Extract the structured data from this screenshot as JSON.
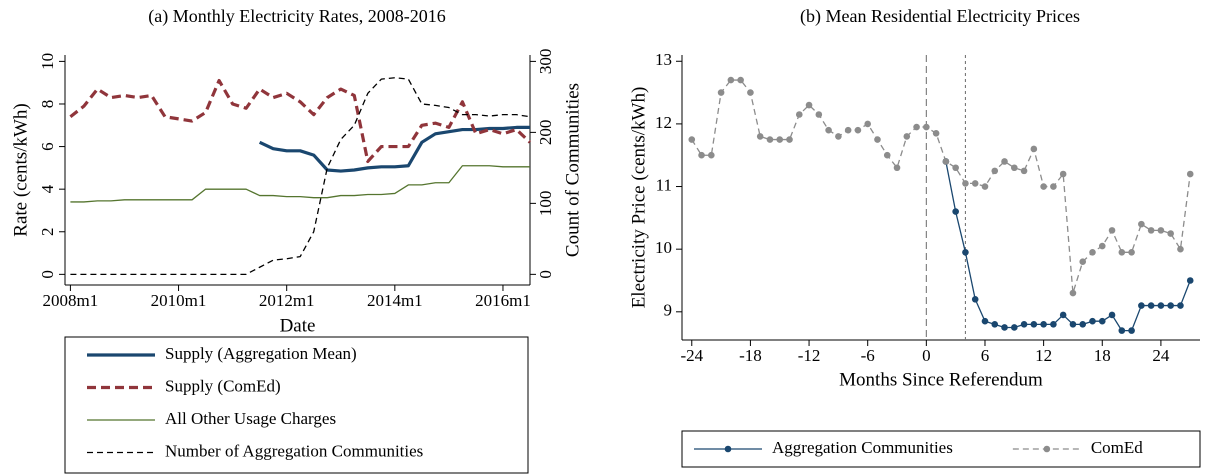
{
  "chart_data": [
    {
      "type": "line",
      "title": "(a) Monthly Electricity Rates, 2008-2016",
      "xlabel": "Date",
      "ylabel": "Rate (cents/kWh)",
      "y2label": "Count of Communities",
      "x": [
        2008,
        2008.25,
        2008.5,
        2008.75,
        2009,
        2009.25,
        2009.5,
        2009.75,
        2010,
        2010.25,
        2010.5,
        2010.75,
        2011,
        2011.25,
        2011.5,
        2011.75,
        2012,
        2012.25,
        2012.5,
        2012.75,
        2013,
        2013.25,
        2013.5,
        2013.75,
        2014,
        2014.25,
        2014.5,
        2014.75,
        2015,
        2015.25,
        2015.5,
        2015.75,
        2016,
        2016.25,
        2016.5
      ],
      "xlim": [
        2007.9,
        2016.5
      ],
      "xticks": [
        {
          "value": 2008,
          "label": "2008m1"
        },
        {
          "value": 2010,
          "label": "2010m1"
        },
        {
          "value": 2012,
          "label": "2012m1"
        },
        {
          "value": 2014,
          "label": "2014m1"
        },
        {
          "value": 2016,
          "label": "2016m1"
        }
      ],
      "ylim": [
        -0.5,
        10.3
      ],
      "yticks": [
        0,
        2,
        4,
        6,
        8,
        10
      ],
      "y2lim": [
        -15,
        309
      ],
      "y2ticks": [
        0,
        100,
        200,
        300
      ],
      "legend": "below",
      "series": [
        {
          "name": "Supply (Aggregation Mean)",
          "color": "#1a476f",
          "line_style": "solid-thick",
          "values": [
            null,
            null,
            null,
            null,
            null,
            null,
            null,
            null,
            null,
            null,
            null,
            null,
            null,
            null,
            6.2,
            5.9,
            5.8,
            5.8,
            5.6,
            4.9,
            4.85,
            4.9,
            5.0,
            5.05,
            5.05,
            5.1,
            6.2,
            6.6,
            6.7,
            6.8,
            6.8,
            6.85,
            6.85,
            6.9,
            6.9
          ]
        },
        {
          "name": "Supply (ComEd)",
          "color": "#90353b",
          "line_style": "dash-thick",
          "values": [
            7.4,
            7.9,
            8.7,
            8.3,
            8.4,
            8.3,
            8.4,
            7.4,
            7.3,
            7.2,
            7.6,
            9.1,
            8.0,
            7.8,
            8.7,
            8.3,
            8.5,
            8.1,
            7.5,
            8.3,
            8.7,
            8.4,
            5.3,
            6.0,
            6.0,
            6.0,
            7.0,
            7.1,
            6.9,
            8.1,
            6.6,
            6.8,
            6.6,
            6.8,
            6.2
          ]
        },
        {
          "name": "All Other Usage Charges",
          "color": "#55752f",
          "line_style": "solid",
          "values": [
            3.4,
            3.4,
            3.45,
            3.45,
            3.5,
            3.5,
            3.5,
            3.5,
            3.5,
            3.5,
            4.0,
            4.0,
            4.0,
            4.0,
            3.7,
            3.7,
            3.65,
            3.65,
            3.6,
            3.6,
            3.7,
            3.7,
            3.75,
            3.75,
            3.8,
            4.2,
            4.2,
            4.3,
            4.3,
            5.1,
            5.1,
            5.1,
            5.05,
            5.05,
            5.05
          ]
        },
        {
          "name": "Number of Aggregation Communities",
          "color": "#000000",
          "line_style": "dash",
          "axis": "y2",
          "values": [
            0,
            0,
            0,
            0,
            0,
            0,
            0,
            0,
            0,
            0,
            0,
            0,
            0,
            0,
            10,
            20,
            22,
            25,
            60,
            150,
            190,
            210,
            255,
            275,
            277,
            275,
            240,
            238,
            235,
            225,
            225,
            223,
            225,
            225,
            222
          ]
        }
      ]
    },
    {
      "type": "line",
      "title": "(b) Mean Residential Electricity Prices",
      "xlabel": "Months Since Referendum",
      "ylabel": "Electricity Price (cents/kWh)",
      "x": [
        -24,
        -23,
        -22,
        -21,
        -20,
        -19,
        -18,
        -17,
        -16,
        -15,
        -14,
        -13,
        -12,
        -11,
        -10,
        -9,
        -8,
        -7,
        -6,
        -5,
        -4,
        -3,
        -2,
        -1,
        0,
        1,
        2,
        3,
        4,
        5,
        6,
        7,
        8,
        9,
        10,
        11,
        12,
        13,
        14,
        15,
        16,
        17,
        18,
        19,
        20,
        21,
        22,
        23,
        24,
        25,
        26,
        27
      ],
      "xlim": [
        -25,
        28
      ],
      "xticks": [
        -24,
        -18,
        -12,
        -6,
        0,
        6,
        12,
        18,
        24
      ],
      "ylim": [
        8.55,
        13.1
      ],
      "yticks": [
        9,
        10,
        11,
        12,
        13
      ],
      "vlines": [
        0,
        4
      ],
      "legend": "below",
      "series": [
        {
          "name": "Aggregation Communities",
          "color": "#1a476f",
          "line_style": "solid",
          "marker": "circle",
          "values": [
            null,
            null,
            null,
            null,
            null,
            null,
            null,
            null,
            null,
            null,
            null,
            null,
            null,
            null,
            null,
            null,
            null,
            null,
            null,
            null,
            null,
            null,
            null,
            null,
            null,
            null,
            11.4,
            10.6,
            9.95,
            9.2,
            8.85,
            8.8,
            8.75,
            8.75,
            8.8,
            8.8,
            8.8,
            8.8,
            8.95,
            8.8,
            8.8,
            8.85,
            8.85,
            8.95,
            8.7,
            8.7,
            9.1,
            9.1,
            9.1,
            9.1,
            9.1,
            9.5
          ]
        },
        {
          "name": "ComEd",
          "color": "#8c8c8c",
          "line_style": "dash",
          "marker": "circle",
          "values": [
            11.75,
            11.5,
            11.5,
            12.5,
            12.7,
            12.7,
            12.5,
            11.8,
            11.75,
            11.75,
            11.75,
            12.15,
            12.3,
            12.15,
            11.9,
            11.8,
            11.9,
            11.9,
            12.0,
            11.75,
            11.5,
            11.3,
            11.8,
            11.95,
            11.95,
            11.85,
            11.4,
            11.3,
            11.05,
            11.05,
            11.0,
            11.25,
            11.4,
            11.3,
            11.25,
            11.6,
            11.0,
            11.0,
            11.2,
            9.3,
            9.8,
            9.95,
            10.05,
            10.3,
            9.95,
            9.95,
            10.4,
            10.3,
            10.3,
            10.25,
            10.0,
            11.2
          ]
        }
      ]
    }
  ]
}
